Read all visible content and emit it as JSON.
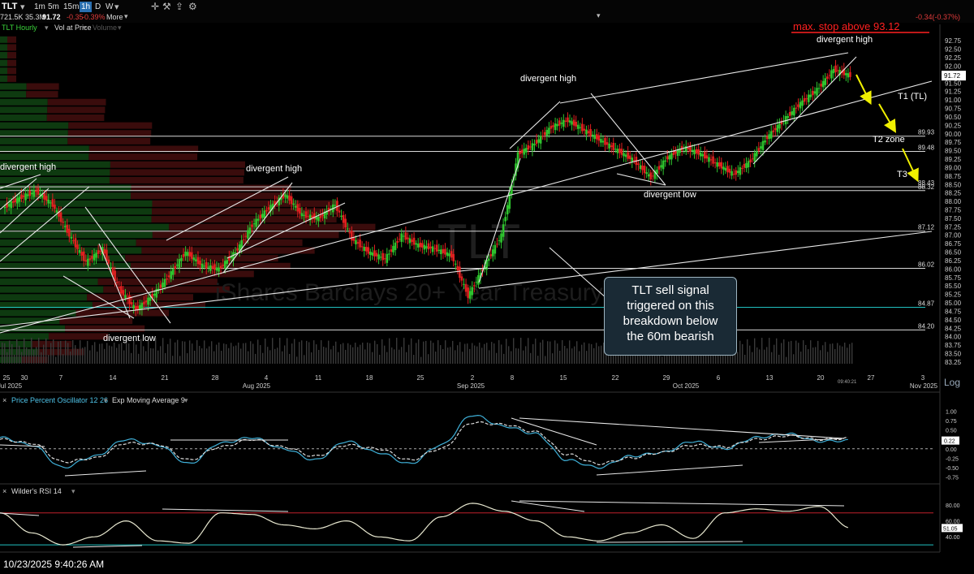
{
  "toolbar": {
    "symbol": "TLT",
    "volume": "721.5K 35.3M",
    "last": "91.72",
    "change": "-0.35",
    "change_pct": "-0.39%",
    "more": "More",
    "timeframes": [
      "1m",
      "5m",
      "15m",
      "1h",
      "D",
      "W"
    ],
    "active_timeframe": "1h",
    "right_change": "-0.34(-0.37%)",
    "icons": [
      "chevron-down-icon",
      "tools-icon",
      "share-icon"
    ]
  },
  "studies": {
    "main": "TLT Hourly",
    "vol_at_price": "Vol at Price",
    "volume": "Volume",
    "ppo": "Price Percent Oscillator 12 26",
    "ppo_ema": "Exp Moving Average 9",
    "rsi": "Wilder's RSI 14"
  },
  "watermark": {
    "ticker": "TLT",
    "name": "iShares Barclays 20+ Year Treasury Bond"
  },
  "annotations": {
    "stop": "max. stop above 93.12",
    "callout": [
      "TLT sell signal",
      "triggered on this",
      "breakdown below",
      "the 60m bearish"
    ],
    "divergent_high_1": "divergent high",
    "divergent_high_2": "divergent high",
    "divergent_high_3": "divergent high",
    "divergent_high_4": "divergent high",
    "divergent_low_1": "divergent  low",
    "divergent_low_2": "divergent  low",
    "t1": "T1 (TL)",
    "t2": "T2 zone",
    "t3": "T3",
    "clock": "09:40:21"
  },
  "log_button": "Log",
  "timestamp": "10/23/2025 9:40:26 AM",
  "colors": {
    "up": "#2ec42e",
    "down": "#e02020",
    "accent_blue": "#2a6fb0",
    "stop_red": "#ff2020",
    "arrow_yellow": "#f0f000",
    "level_cyan": "#20c0c0"
  },
  "chart_data": [
    {
      "type": "line",
      "title": "TLT Hourly",
      "price_axis_ticks": [
        "92.75",
        "92.50",
        "92.25",
        "92.00",
        "91.75",
        "91.50",
        "91.25",
        "91.00",
        "90.75",
        "90.50",
        "90.25",
        "90.00",
        "89.75",
        "89.50",
        "89.25",
        "89.00",
        "88.75",
        "88.50",
        "88.25",
        "88.00",
        "87.75",
        "87.50",
        "87.25",
        "87.00",
        "86.75",
        "86.50",
        "86.25",
        "86.00",
        "85.75",
        "85.50",
        "85.25",
        "85.00",
        "84.75",
        "84.50",
        "84.25",
        "84.00",
        "83.75",
        "83.50",
        "83.25"
      ],
      "ylim": [
        83.2,
        92.9
      ],
      "horizontal_levels": [
        {
          "value": 89.93,
          "label": "89.93"
        },
        {
          "value": 89.48,
          "label": "89.48"
        },
        {
          "value": 88.43,
          "label": "88.43"
        },
        {
          "value": 88.32,
          "label": "88.32"
        },
        {
          "value": 87.12,
          "label": "87.12"
        },
        {
          "value": 86.02,
          "label": "86.02"
        },
        {
          "value": 84.87,
          "label": "84.87"
        },
        {
          "value": 84.2,
          "label": "84.20"
        }
      ],
      "last_price": 91.72,
      "x_ticks": [
        "25",
        "30",
        "Jul 2025",
        "7",
        "14",
        "21",
        "28",
        "Aug 2025",
        "4",
        "11",
        "18",
        "25",
        "Sep 2025",
        "2",
        "8",
        "15",
        "22",
        "29",
        "Oct 2025",
        "6",
        "13",
        "20",
        "27",
        "3",
        "Nov 2025"
      ],
      "series": [
        {
          "name": "TLT",
          "x": [
            "Jun 25",
            "Jun 27",
            "Jun 30",
            "Jul 2",
            "Jul 7",
            "Jul 9",
            "Jul 11",
            "Jul 14",
            "Jul 16",
            "Jul 18",
            "Jul 21",
            "Jul 23",
            "Jul 25",
            "Jul 28",
            "Jul 30",
            "Aug 1",
            "Aug 4",
            "Aug 6",
            "Aug 8",
            "Aug 11",
            "Aug 13",
            "Aug 15",
            "Aug 18",
            "Aug 20",
            "Aug 22",
            "Aug 25",
            "Aug 27",
            "Aug 29",
            "Sep 2",
            "Sep 3",
            "Sep 5",
            "Sep 8",
            "Sep 10",
            "Sep 12",
            "Sep 15",
            "Sep 17",
            "Sep 19",
            "Sep 22",
            "Sep 24",
            "Sep 26",
            "Sep 29",
            "Oct 1",
            "Oct 3",
            "Oct 6",
            "Oct 8",
            "Oct 10",
            "Oct 13",
            "Oct 15",
            "Oct 17",
            "Oct 20",
            "Oct 22",
            "Oct 23"
          ],
          "values": [
            87.8,
            88.1,
            88.3,
            87.9,
            87.0,
            86.2,
            86.6,
            85.4,
            84.8,
            85.2,
            85.8,
            86.5,
            86.1,
            86.0,
            86.5,
            87.3,
            87.8,
            88.2,
            87.6,
            87.5,
            87.9,
            86.9,
            86.5,
            86.3,
            87.0,
            86.7,
            86.6,
            86.4,
            85.2,
            86.1,
            87.0,
            89.4,
            89.7,
            90.2,
            90.4,
            90.1,
            89.8,
            89.5,
            89.2,
            88.7,
            89.3,
            89.6,
            89.4,
            89.1,
            88.8,
            89.2,
            89.9,
            90.4,
            90.9,
            91.3,
            91.9,
            91.72
          ]
        }
      ]
    },
    {
      "type": "line",
      "title": "Price Percent Oscillator 12 26",
      "y_axis_ticks": [
        "1.00",
        "0.75",
        "0.50",
        "0.25",
        "0.00",
        "-0.25",
        "-0.50",
        "-0.75"
      ],
      "ylim": [
        -0.85,
        1.1
      ],
      "last_value_label": "0.22",
      "series": [
        {
          "name": "Price Percent Oscillator 12 26",
          "values": [
            0.3,
            0.1,
            -0.5,
            -0.2,
            0.25,
            0.1,
            -0.4,
            0.15,
            0.3,
            0.0,
            -0.3,
            0.2,
            -0.1,
            -0.4,
            0.1,
            0.9,
            0.6,
            0.4,
            -0.3,
            -0.5,
            -0.2,
            -0.1,
            0.2,
            0.0,
            0.3,
            0.4,
            0.2,
            0.22
          ]
        },
        {
          "name": "Exp Moving Average 9",
          "values": [
            0.25,
            0.15,
            -0.35,
            -0.25,
            0.15,
            0.12,
            -0.3,
            0.05,
            0.25,
            0.05,
            -0.2,
            0.1,
            0.0,
            -0.3,
            0.0,
            0.7,
            0.65,
            0.45,
            -0.15,
            -0.4,
            -0.25,
            -0.1,
            0.1,
            0.05,
            0.25,
            0.35,
            0.25,
            0.28
          ]
        }
      ]
    },
    {
      "type": "line",
      "title": "Wilder's RSI 14",
      "y_axis_ticks": [
        "80.00",
        "60.00",
        "40.00"
      ],
      "ylim": [
        25,
        90
      ],
      "last_value_label": "51.05",
      "overbought": 70,
      "oversold": 30,
      "series": [
        {
          "name": "Wilder's RSI 14",
          "values": [
            70,
            45,
            30,
            40,
            60,
            35,
            32,
            70,
            68,
            55,
            50,
            60,
            40,
            35,
            65,
            82,
            72,
            60,
            40,
            35,
            45,
            55,
            38,
            70,
            75,
            72,
            78,
            51.05
          ]
        }
      ]
    }
  ]
}
